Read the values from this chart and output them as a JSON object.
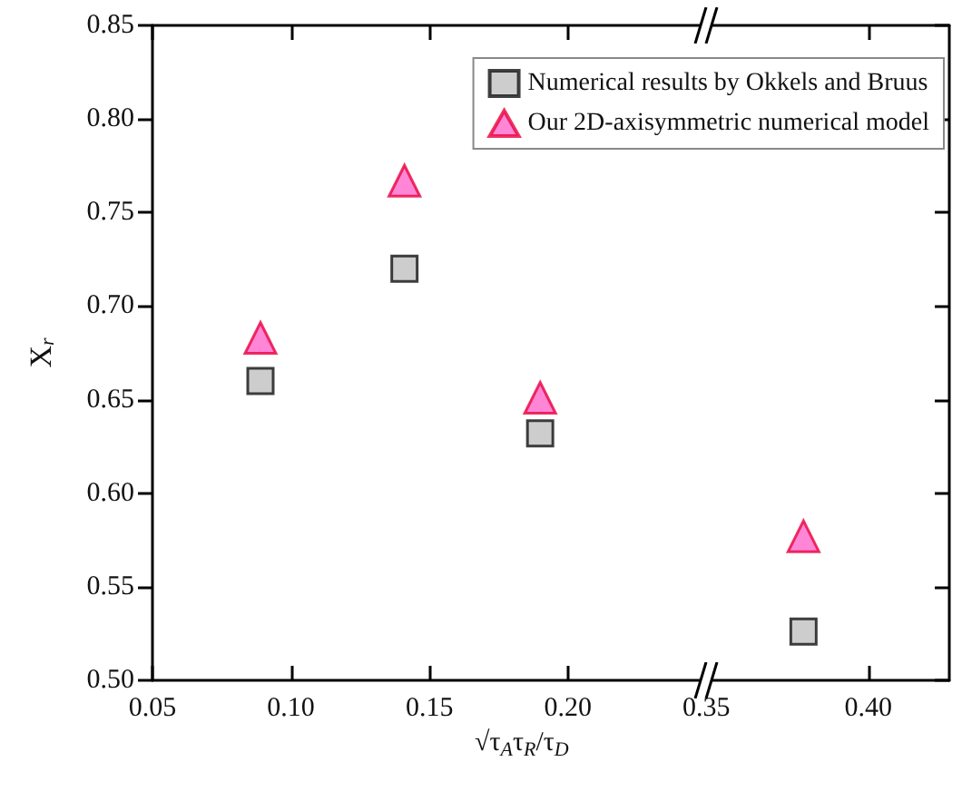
{
  "chart_data": [
    {
      "type": "scatter",
      "xlabel": "√τ$_{A}$τ$_{R}$/τ$_{D}$",
      "ylabel": "X$_{r}$",
      "x": [
        0.089,
        0.141,
        0.19
      ],
      "series": [
        {
          "name": "Numerical results by Okkels and Bruus",
          "color": "#c0c0c0",
          "marker": "square",
          "values": [
            0.66,
            0.72,
            0.632
          ]
        },
        {
          "name": "Our 2D-axisymmetric numerical model",
          "color": "#ff66cc",
          "marker": "triangle",
          "values": [
            0.683,
            0.767,
            0.651
          ]
        }
      ],
      "xlim": [
        0.05,
        0.25
      ],
      "xticks": [
        0.05,
        {
          "value": 0.1,
          "label": "0.10"
        },
        0.15,
        {
          "value": 0.2,
          "label": "0.20"
        }
      ],
      "ylim": [
        0.5,
        0.85
      ],
      "yticks": [
        {
          "value": 0.5,
          "label": "0.50"
        },
        0.55,
        {
          "value": 0.6,
          "label": "0.60"
        },
        0.65,
        {
          "value": 0.7,
          "label": "0.70"
        },
        0.75,
        {
          "value": 0.8,
          "label": "0.80"
        },
        0.85
      ],
      "legend": "top right",
      "grid": false
    },
    {
      "type": "scatter",
      "x": [
        0.38
      ],
      "series": [
        {
          "color": "#c0c0c0",
          "marker": "square",
          "values": [
            0.526
          ]
        },
        {
          "color": "#ff66cc",
          "marker": "triangle",
          "values": [
            0.577
          ]
        }
      ],
      "xlim": [
        0.35,
        0.425
      ],
      "xticks": [
        0.35,
        {
          "value": 0.4,
          "label": "0.40"
        }
      ],
      "ylim": [
        0.5,
        0.85
      ],
      "yticks": [
        0.5,
        0.55,
        0.6,
        0.65,
        0.7,
        0.75,
        0.8,
        0.85
      ],
      "tick_labels": "x",
      "grid": false
    }
  ]
}
